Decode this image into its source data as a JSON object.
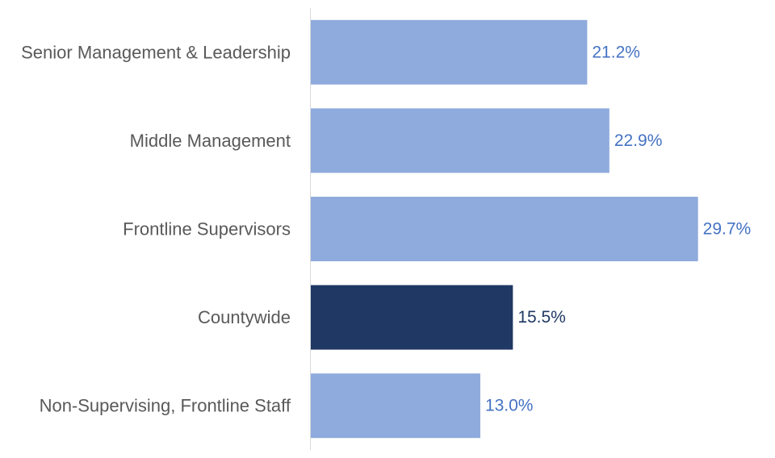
{
  "chart_data": {
    "type": "bar",
    "orientation": "horizontal",
    "categories": [
      "Senior Management & Leadership",
      "Middle Management",
      "Frontline Supervisors",
      "Countywide",
      "Non-Supervising, Frontline Staff"
    ],
    "values": [
      21.2,
      22.9,
      29.7,
      15.5,
      13.0
    ],
    "value_labels": [
      "21.2%",
      "22.9%",
      "29.7%",
      "15.5%",
      "13.0%"
    ],
    "unit": "%",
    "xlim": [
      0,
      35
    ],
    "grid": false,
    "legend": "none",
    "title": "",
    "xlabel": "",
    "ylabel": "",
    "highlight_category": "Countywide",
    "colors": {
      "bar": "#8FAADC",
      "highlight_bar": "#1F3864",
      "label": "#4472C4",
      "highlight_label": "#1F3864",
      "axis": "#D9D9D9",
      "category_text": "#595959"
    }
  }
}
